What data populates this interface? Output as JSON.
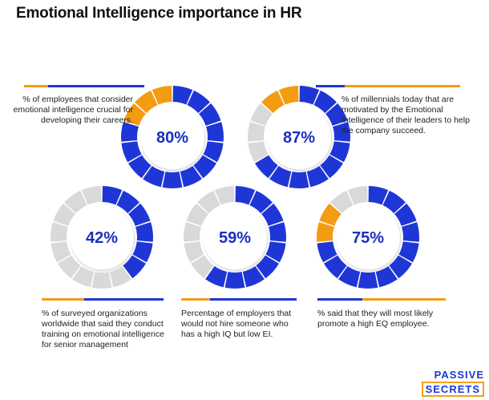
{
  "title": "Emotional Intelligence importance in HR",
  "logo": {
    "line1": "PASSIVE",
    "line2": "SECRETS"
  },
  "colors": {
    "primary": "#1f36d6",
    "accent": "#f39c12",
    "neutral": "#d9d9d9",
    "label": "#1b2fbf"
  },
  "chart_data": {
    "type": "pie",
    "segments_per_ring": 15,
    "items": [
      {
        "label": "80%",
        "value": 80,
        "accent_segments": 3,
        "caption": "% of employees that consider emotional intelligence crucial for developing their careers."
      },
      {
        "label": "87%",
        "value": 87,
        "accent_segments": 5,
        "caption": "% of millennials today that  are motivated by the Emotional Intelligence of their leaders to help the company succeed."
      },
      {
        "label": "42%",
        "value": 42,
        "accent_segments": 0,
        "caption": "% of surveyed organizations worldwide that said they conduct training on emotional intelligence for senior management"
      },
      {
        "label": "59%",
        "value": 59,
        "accent_segments": 0,
        "caption": "Percentage of employers that would not hire someone who has a high IQ but low EI."
      },
      {
        "label": "75%",
        "value": 75,
        "accent_segments": 2,
        "caption": "% said that they will most likely promote a high EQ employee."
      }
    ]
  }
}
